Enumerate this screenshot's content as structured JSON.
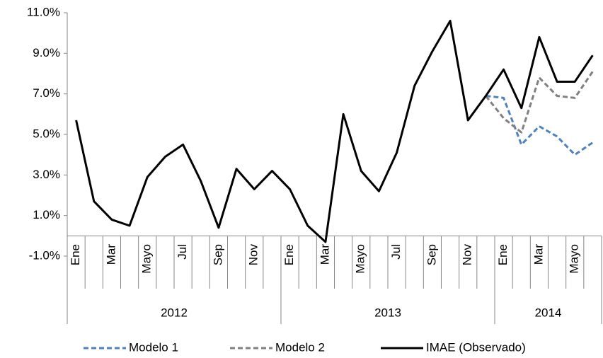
{
  "chart_data": {
    "type": "line",
    "categories": [
      "Ene",
      null,
      "Mar",
      null,
      "Mayo",
      null,
      "Jul",
      null,
      "Sep",
      null,
      "Nov",
      null,
      "Ene",
      null,
      "Mar",
      null,
      "Mayo",
      null,
      "Jul",
      null,
      "Sep",
      null,
      "Nov",
      null,
      "Ene",
      null,
      "Mar",
      null,
      "Mayo",
      null
    ],
    "years": [
      "2012",
      "2013",
      "2014"
    ],
    "series": [
      {
        "name": "Modelo 1",
        "color": "#4f81bd",
        "style": "dashed",
        "values": [
          null,
          null,
          null,
          null,
          null,
          null,
          null,
          null,
          null,
          null,
          null,
          null,
          null,
          null,
          null,
          null,
          null,
          null,
          null,
          null,
          null,
          null,
          null,
          6.9,
          6.8,
          4.5,
          5.4,
          4.9,
          4.0,
          4.6
        ]
      },
      {
        "name": "Modelo 2",
        "color": "#808080",
        "style": "dashed",
        "values": [
          null,
          null,
          null,
          null,
          null,
          null,
          null,
          null,
          null,
          null,
          null,
          null,
          null,
          null,
          null,
          null,
          null,
          null,
          null,
          null,
          null,
          null,
          null,
          6.9,
          5.8,
          5.1,
          7.8,
          6.9,
          6.8,
          8.1
        ]
      },
      {
        "name": "IMAE (Observado)",
        "color": "#000000",
        "style": "solid",
        "values": [
          5.7,
          1.7,
          0.8,
          0.5,
          2.9,
          3.9,
          4.5,
          2.7,
          0.4,
          3.3,
          2.3,
          3.2,
          2.3,
          0.5,
          -0.3,
          6.0,
          3.2,
          2.2,
          4.1,
          7.4,
          9.1,
          10.6,
          5.7,
          6.9,
          8.2,
          6.3,
          9.8,
          7.6,
          7.6,
          8.9
        ]
      }
    ],
    "ylim": [
      -1,
      11
    ],
    "yticks": [
      {
        "value": -1,
        "label": "-1.0%"
      },
      {
        "value": 1,
        "label": "1.0%"
      },
      {
        "value": 3,
        "label": "3.0%"
      },
      {
        "value": 5,
        "label": "5.0%"
      },
      {
        "value": 7,
        "label": "7.0%"
      },
      {
        "value": 9,
        "label": "9.0%"
      },
      {
        "value": 11,
        "label": "11.0%"
      }
    ],
    "grid": false,
    "legend": "bottom"
  }
}
